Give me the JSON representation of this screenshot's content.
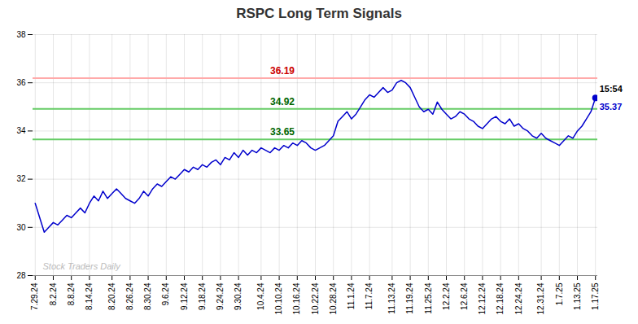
{
  "chart_data": {
    "type": "line",
    "title": "RSPC Long Term Signals",
    "title_color": "#333333",
    "color": "#0000cc",
    "grid": true,
    "ylim": [
      28,
      38
    ],
    "yticks": [
      28,
      30,
      32,
      34,
      36,
      38
    ],
    "categories": [
      "7.29.24",
      null,
      null,
      null,
      "8.2.24",
      null,
      null,
      null,
      "8.8.24",
      null,
      null,
      null,
      "8.14.24",
      null,
      null,
      null,
      null,
      "8.20.24",
      null,
      null,
      null,
      "8.26.24",
      null,
      null,
      null,
      "8.30.24",
      null,
      null,
      null,
      "9.6.24",
      null,
      null,
      null,
      "9.12.24",
      null,
      null,
      null,
      "9.18.24",
      null,
      null,
      null,
      "9.24.24",
      null,
      null,
      null,
      "9.30.24",
      null,
      null,
      null,
      null,
      "10.4.24",
      null,
      null,
      null,
      "10.10.24",
      null,
      null,
      null,
      "10.16.24",
      null,
      null,
      null,
      "10.22.24",
      null,
      null,
      null,
      "10.28.24",
      null,
      null,
      null,
      "11.1.24",
      null,
      null,
      null,
      "11.7.24",
      null,
      null,
      null,
      null,
      "11.13.24",
      null,
      null,
      null,
      "11.19.24",
      null,
      null,
      null,
      "11.25.24",
      null,
      null,
      null,
      "12.2.24",
      null,
      null,
      null,
      "12.6.24",
      null,
      null,
      null,
      "12.12.24",
      null,
      null,
      null,
      "12.18.24",
      null,
      null,
      null,
      "12.24.24",
      null,
      null,
      null,
      null,
      "12.31.24",
      null,
      null,
      null,
      "1.7.25",
      null,
      null,
      null,
      "1.13.25",
      null,
      null,
      null,
      "1.17.25"
    ],
    "values": [
      31.0,
      30.4,
      29.8,
      30.0,
      30.2,
      30.1,
      30.3,
      30.5,
      30.4,
      30.6,
      30.8,
      30.6,
      31.0,
      31.3,
      31.1,
      31.5,
      31.2,
      31.4,
      31.6,
      31.4,
      31.2,
      31.1,
      31.0,
      31.2,
      31.5,
      31.3,
      31.6,
      31.8,
      31.7,
      31.9,
      32.1,
      32.0,
      32.2,
      32.4,
      32.3,
      32.5,
      32.4,
      32.6,
      32.5,
      32.7,
      32.8,
      32.6,
      32.9,
      32.8,
      33.1,
      32.9,
      33.2,
      33.0,
      33.2,
      33.1,
      33.3,
      33.2,
      33.1,
      33.3,
      33.2,
      33.4,
      33.3,
      33.5,
      33.4,
      33.6,
      33.5,
      33.3,
      33.2,
      33.3,
      33.4,
      33.6,
      33.8,
      34.4,
      34.6,
      34.8,
      34.5,
      34.7,
      35.0,
      35.3,
      35.5,
      35.4,
      35.6,
      35.8,
      35.6,
      35.7,
      36.0,
      36.1,
      36.0,
      35.8,
      35.4,
      35.0,
      34.8,
      34.9,
      34.7,
      35.2,
      34.9,
      34.7,
      34.5,
      34.6,
      34.8,
      34.7,
      34.5,
      34.4,
      34.2,
      34.1,
      34.3,
      34.5,
      34.6,
      34.4,
      34.3,
      34.5,
      34.2,
      34.3,
      34.1,
      34.0,
      33.8,
      33.7,
      33.9,
      33.7,
      33.6,
      33.5,
      33.4,
      33.6,
      33.8,
      33.7,
      34.0,
      34.2,
      34.5,
      34.8,
      35.37
    ],
    "hlines": [
      {
        "value": 36.19,
        "label": "36.19",
        "color": "#ffaaaa",
        "label_color": "#cc0000"
      },
      {
        "value": 34.92,
        "label": "34.92",
        "color": "#66cc66",
        "label_color": "#006600"
      },
      {
        "value": 33.65,
        "label": "33.65",
        "color": "#66cc66",
        "label_color": "#006600"
      }
    ],
    "last_point": {
      "value": 35.37,
      "label": "35.37",
      "color": "#0000cc",
      "time": "15:54",
      "time_color": "#000000"
    },
    "watermark": {
      "text": "Stock Traders Daily",
      "color": "#bbbbbb"
    }
  }
}
